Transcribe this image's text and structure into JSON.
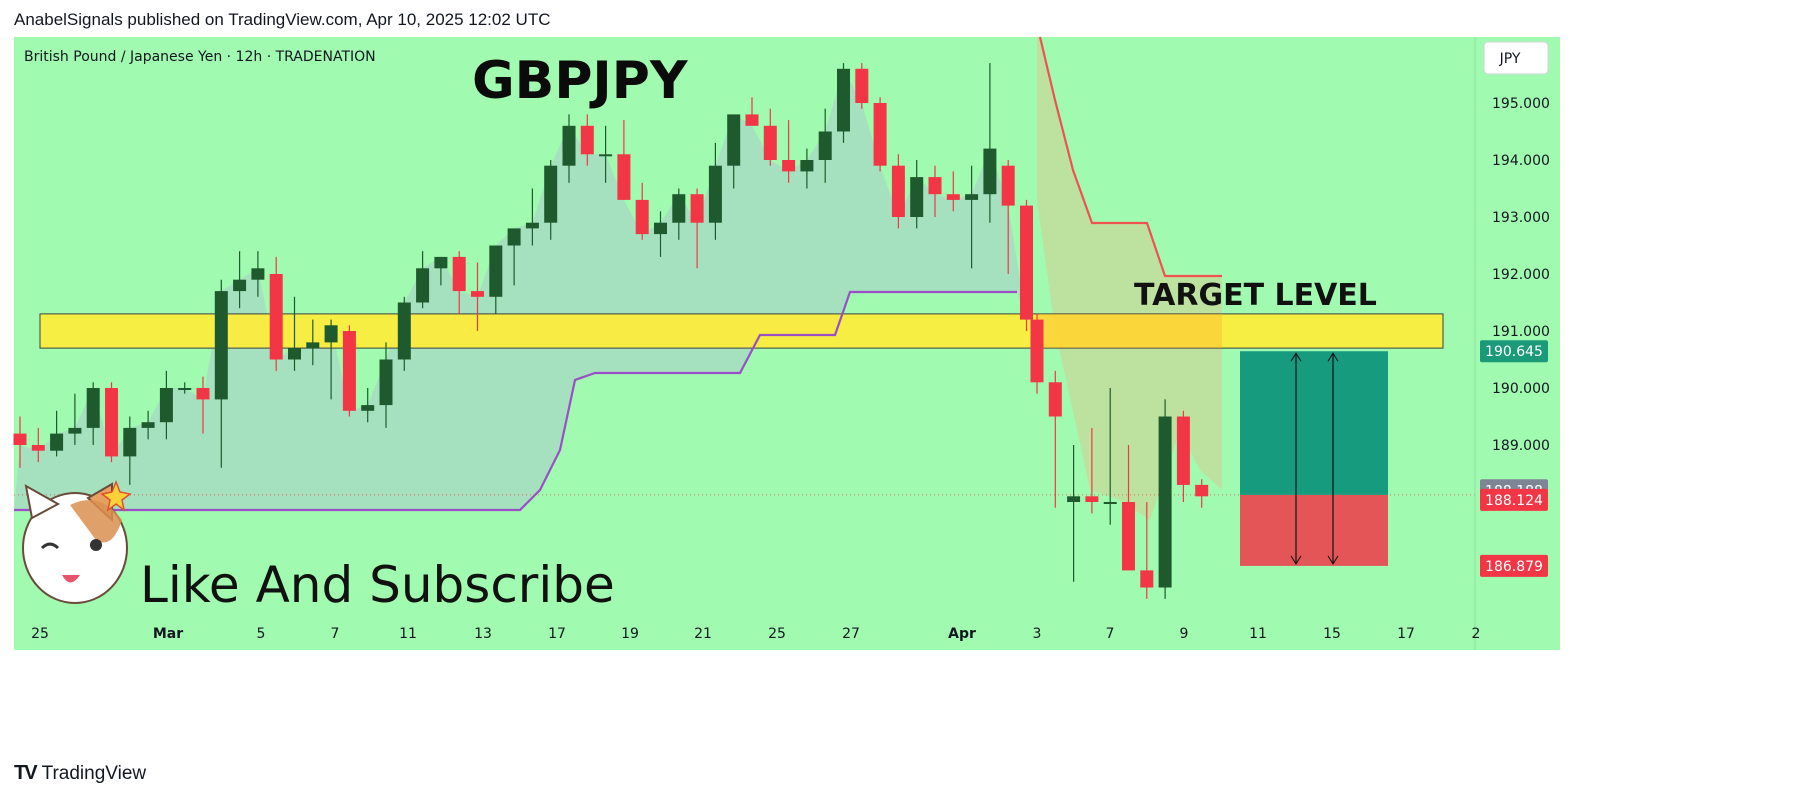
{
  "header": {
    "published": "AnabelSignals published on TradingView.com, Apr 10, 2025 12:02 UTC"
  },
  "footer": {
    "logo": "TradingView"
  },
  "colors": {
    "background": "#a0fab0",
    "bull": "#1e5a2d",
    "bear": "#f23645",
    "zone": "#ffee3a",
    "profit": "#169b7f",
    "loss": "#e35557",
    "support_line": "#9b4fc7",
    "resistance_line": "#ef5350"
  },
  "chart_data": {
    "type": "candlestick",
    "instrument": "British Pound / Japanese Yen · 12h · TRADENATION",
    "title": "GBPJPY",
    "currency": "JPY",
    "annotations": {
      "target": "TARGET LEVEL",
      "cta": "Like And Subscribe"
    },
    "y_ticks": [
      "195.000",
      "194.000",
      "193.000",
      "192.000",
      "191.000",
      "190.000",
      "189.000"
    ],
    "x_ticks": [
      "25",
      "Mar",
      "5",
      "7",
      "11",
      "13",
      "17",
      "19",
      "21",
      "25",
      "27",
      "Apr",
      "3",
      "7",
      "9",
      "11",
      "15",
      "17",
      "2"
    ],
    "price_labels": [
      {
        "value": "190.645",
        "role": "target"
      },
      {
        "value": "188.188",
        "role": "last-close"
      },
      {
        "value": "188.124",
        "role": "current"
      },
      {
        "value": "186.879",
        "role": "stop"
      }
    ],
    "target_zone": [
      190.7,
      191.3
    ],
    "position": {
      "entry": 188.124,
      "take_profit": 190.645,
      "stop_loss": 186.879
    },
    "candles": [
      [
        189.2,
        189.5,
        188.6,
        189.0
      ],
      [
        189.0,
        189.3,
        188.7,
        188.9
      ],
      [
        188.9,
        189.6,
        188.8,
        189.2
      ],
      [
        189.2,
        189.9,
        189.0,
        189.3
      ],
      [
        189.3,
        190.1,
        189.0,
        190.0
      ],
      [
        190.0,
        190.1,
        188.7,
        188.8
      ],
      [
        188.8,
        189.5,
        188.3,
        189.3
      ],
      [
        189.3,
        189.6,
        189.1,
        189.4
      ],
      [
        189.4,
        190.3,
        189.1,
        190.0
      ],
      [
        190.0,
        190.1,
        189.9,
        190.0
      ],
      [
        190.0,
        190.2,
        189.2,
        189.8
      ],
      [
        189.8,
        191.9,
        188.6,
        191.7
      ],
      [
        191.7,
        192.4,
        191.4,
        191.9
      ],
      [
        191.9,
        192.4,
        191.6,
        192.1
      ],
      [
        192.0,
        192.3,
        190.3,
        190.5
      ],
      [
        190.5,
        191.6,
        190.3,
        190.7
      ],
      [
        190.7,
        191.2,
        190.4,
        190.8
      ],
      [
        190.8,
        191.2,
        189.8,
        191.1
      ],
      [
        191.0,
        191.1,
        189.5,
        189.6
      ],
      [
        189.6,
        190.0,
        189.4,
        189.7
      ],
      [
        189.7,
        190.8,
        189.3,
        190.5
      ],
      [
        190.5,
        191.6,
        190.3,
        191.5
      ],
      [
        191.5,
        192.4,
        191.4,
        192.1
      ],
      [
        192.1,
        192.3,
        191.8,
        192.3
      ],
      [
        192.3,
        192.4,
        191.3,
        191.7
      ],
      [
        191.7,
        192.2,
        191.0,
        191.6
      ],
      [
        191.6,
        192.5,
        191.3,
        192.5
      ],
      [
        192.5,
        192.8,
        191.8,
        192.8
      ],
      [
        192.8,
        193.5,
        192.5,
        192.9
      ],
      [
        192.9,
        194.0,
        192.6,
        193.9
      ],
      [
        193.9,
        194.8,
        193.6,
        194.6
      ],
      [
        194.6,
        194.8,
        193.9,
        194.1
      ],
      [
        194.1,
        194.6,
        193.6,
        194.1
      ],
      [
        194.1,
        194.7,
        193.3,
        193.3
      ],
      [
        193.3,
        193.6,
        192.6,
        192.7
      ],
      [
        192.7,
        193.1,
        192.3,
        192.9
      ],
      [
        192.9,
        193.5,
        192.6,
        193.4
      ],
      [
        193.4,
        193.5,
        192.1,
        192.9
      ],
      [
        192.9,
        194.3,
        192.6,
        193.9
      ],
      [
        193.9,
        194.8,
        193.5,
        194.8
      ],
      [
        194.8,
        195.1,
        194.6,
        194.6
      ],
      [
        194.6,
        194.9,
        193.9,
        194.0
      ],
      [
        194.0,
        194.7,
        193.6,
        193.8
      ],
      [
        193.8,
        194.2,
        193.5,
        194.0
      ],
      [
        194.0,
        194.9,
        193.6,
        194.5
      ],
      [
        194.5,
        195.7,
        194.3,
        195.6
      ],
      [
        195.6,
        195.7,
        194.9,
        195.0
      ],
      [
        195.0,
        195.1,
        193.8,
        193.9
      ],
      [
        193.9,
        194.1,
        192.8,
        193.0
      ],
      [
        193.0,
        194.0,
        192.8,
        193.7
      ],
      [
        193.7,
        193.9,
        193.0,
        193.4
      ],
      [
        193.4,
        193.8,
        193.1,
        193.3
      ],
      [
        193.3,
        193.9,
        192.1,
        193.4
      ],
      [
        193.4,
        195.7,
        192.9,
        194.2
      ],
      [
        193.9,
        194.0,
        192.0,
        193.2
      ],
      [
        193.2,
        193.3,
        191.0,
        191.2
      ],
      [
        191.2,
        191.3,
        189.9,
        190.1
      ],
      [
        190.1,
        190.3,
        187.9,
        189.5
      ],
      [
        188.0,
        189.0,
        186.6,
        188.1
      ],
      [
        188.1,
        189.3,
        187.8,
        188.0
      ],
      [
        188.0,
        190.0,
        187.6,
        188.0
      ],
      [
        188.0,
        189.0,
        186.8,
        186.8
      ],
      [
        186.8,
        188.0,
        186.3,
        186.5
      ],
      [
        186.5,
        189.8,
        186.3,
        189.5
      ],
      [
        189.5,
        189.6,
        188.0,
        188.3
      ],
      [
        188.3,
        188.4,
        187.9,
        188.1
      ]
    ]
  }
}
